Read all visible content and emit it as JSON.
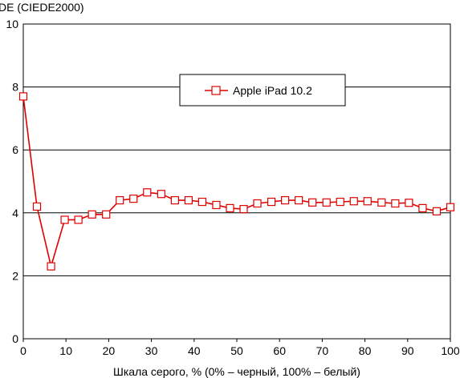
{
  "chart_data": {
    "type": "line",
    "ylabel": "DE (CIEDE2000)",
    "xlabel": "Шкала серого, % (0% – черный, 100% – белый)",
    "xlim": [
      0,
      100
    ],
    "ylim": [
      0,
      10
    ],
    "x_ticks": [
      "0",
      "10",
      "20",
      "30",
      "40",
      "50",
      "60",
      "70",
      "80",
      "90",
      "100"
    ],
    "y_ticks": [
      "0",
      "2",
      "4",
      "6",
      "8",
      "10"
    ],
    "grid": "horizontal",
    "legend_position": "top-center",
    "series": [
      {
        "name": "Apple iPad 10.2",
        "color": "#e00000",
        "marker": "open-square",
        "x": [
          0,
          3.2,
          6.5,
          9.7,
          12.9,
          16.1,
          19.4,
          22.6,
          25.8,
          29.0,
          32.3,
          35.5,
          38.7,
          41.9,
          45.2,
          48.4,
          51.6,
          54.8,
          58.1,
          61.3,
          64.5,
          67.7,
          71.0,
          74.2,
          77.4,
          80.6,
          83.9,
          87.1,
          90.3,
          93.5,
          96.8,
          100
        ],
        "y": [
          7.7,
          4.2,
          2.3,
          3.78,
          3.78,
          3.95,
          3.95,
          4.4,
          4.45,
          4.65,
          4.6,
          4.4,
          4.4,
          4.35,
          4.25,
          4.15,
          4.12,
          4.3,
          4.35,
          4.4,
          4.4,
          4.33,
          4.33,
          4.35,
          4.37,
          4.37,
          4.33,
          4.3,
          4.32,
          4.15,
          4.05,
          4.18
        ]
      }
    ]
  }
}
